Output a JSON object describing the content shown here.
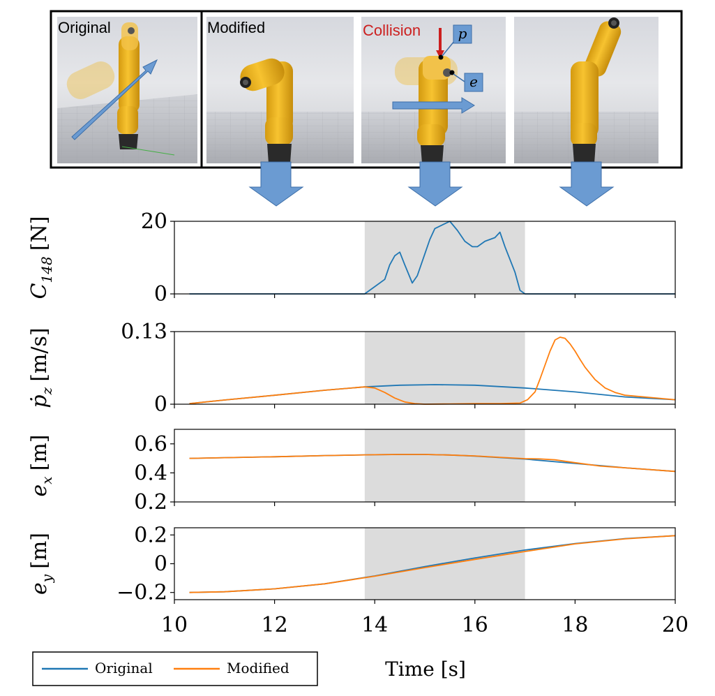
{
  "panels": {
    "original_label": "Original",
    "modified_label": "Modified",
    "collision_label": "Collision",
    "point_p_label": "p",
    "point_e_label": "e"
  },
  "x_axis": {
    "label": "Time [s]",
    "ticks": [
      10,
      12,
      14,
      16,
      18,
      20
    ],
    "range": [
      10,
      20
    ]
  },
  "legend": {
    "entries": [
      "Original",
      "Modified"
    ],
    "placement": "bottom-left"
  },
  "colors": {
    "original": "#1f77b4",
    "modified": "#ff7f0e",
    "shade": "#dcdcdc",
    "arrow": "#6b9bd2",
    "collision": "#cc1f1f",
    "robot": "#f2b51b"
  },
  "chart_data": [
    {
      "type": "line",
      "ylabel_main": "C",
      "ylabel_sub": "148",
      "ylabel_unit": "[N]",
      "ylim": [
        0,
        20
      ],
      "yticks": [
        0,
        20
      ],
      "shaded_x": [
        13.8,
        17.0
      ],
      "series": [
        {
          "name": "Original",
          "x": [
            10.3,
            13.8,
            14.0,
            14.2,
            14.3,
            14.4,
            14.5,
            14.6,
            14.75,
            14.85,
            15.0,
            15.1,
            15.2,
            15.35,
            15.5,
            15.65,
            15.8,
            15.95,
            16.05,
            16.2,
            16.4,
            16.5,
            16.6,
            16.8,
            16.9,
            17.0,
            20.0
          ],
          "y": [
            0,
            0,
            2,
            4,
            8,
            10.5,
            11.5,
            8,
            3,
            5,
            11,
            15,
            18,
            19,
            20,
            17.5,
            14.5,
            13,
            13,
            14.5,
            15.5,
            17,
            13,
            6,
            1,
            0,
            0
          ]
        }
      ]
    },
    {
      "type": "line",
      "ylabel_main": "ṗ",
      "ylabel_sub": "z",
      "ylabel_unit": "[m/s]",
      "ylim": [
        0,
        0.13
      ],
      "yticks": [
        0,
        0.13
      ],
      "shaded_x": [
        13.8,
        17.0
      ],
      "series": [
        {
          "name": "Original",
          "x": [
            10.3,
            11.0,
            12.0,
            13.0,
            13.8,
            14.5,
            15.2,
            16.0,
            17.0,
            18.0,
            19.0,
            20.0
          ],
          "y": [
            0.001,
            0.0075,
            0.016,
            0.025,
            0.031,
            0.034,
            0.035,
            0.034,
            0.029,
            0.022,
            0.013,
            0.008
          ]
        },
        {
          "name": "Modified",
          "x": [
            10.3,
            11.0,
            12.0,
            13.0,
            13.8,
            14.0,
            14.2,
            14.4,
            14.6,
            14.8,
            15.0,
            15.5,
            16.0,
            16.5,
            16.9,
            17.05,
            17.2,
            17.3,
            17.4,
            17.5,
            17.6,
            17.7,
            17.8,
            17.9,
            18.0,
            18.1,
            18.2,
            18.4,
            18.6,
            18.8,
            19.0,
            19.5,
            20.0
          ],
          "y": [
            0.001,
            0.0075,
            0.016,
            0.025,
            0.031,
            0.029,
            0.021,
            0.011,
            0.004,
            0.001,
            0.0,
            0.0005,
            0.001,
            0.001,
            0.002,
            0.008,
            0.022,
            0.045,
            0.07,
            0.095,
            0.115,
            0.12,
            0.118,
            0.108,
            0.095,
            0.08,
            0.066,
            0.044,
            0.029,
            0.021,
            0.016,
            0.012,
            0.008
          ]
        }
      ]
    },
    {
      "type": "line",
      "ylabel_main": "e",
      "ylabel_sub": "x",
      "ylabel_unit": "[m]",
      "ylim": [
        0.2,
        0.7
      ],
      "yticks": [
        0.2,
        0.4,
        0.6
      ],
      "shaded_x": [
        13.8,
        17.0
      ],
      "series": [
        {
          "name": "Original",
          "x": [
            10.3,
            11.0,
            12.0,
            13.0,
            14.0,
            14.5,
            15.0,
            15.5,
            16.0,
            17.0,
            18.0,
            19.0,
            20.0
          ],
          "y": [
            0.5,
            0.505,
            0.511,
            0.519,
            0.525,
            0.527,
            0.527,
            0.523,
            0.516,
            0.495,
            0.465,
            0.435,
            0.41
          ]
        },
        {
          "name": "Modified",
          "x": [
            10.3,
            11.0,
            12.0,
            13.0,
            14.0,
            14.5,
            15.0,
            15.5,
            16.0,
            16.5,
            17.0,
            17.3,
            17.6,
            18.0,
            18.5,
            19.0,
            20.0
          ],
          "y": [
            0.5,
            0.505,
            0.511,
            0.519,
            0.525,
            0.527,
            0.527,
            0.523,
            0.517,
            0.507,
            0.498,
            0.496,
            0.49,
            0.47,
            0.447,
            0.435,
            0.41
          ]
        }
      ]
    },
    {
      "type": "line",
      "ylabel_main": "e",
      "ylabel_sub": "y",
      "ylabel_unit": "[m]",
      "ylim": [
        -0.25,
        0.25
      ],
      "yticks": [
        -0.2,
        0,
        0.2
      ],
      "shaded_x": [
        13.8,
        17.0
      ],
      "series": [
        {
          "name": "Original",
          "x": [
            10.3,
            11.0,
            12.0,
            13.0,
            14.0,
            15.0,
            16.0,
            17.0,
            18.0,
            19.0,
            20.0
          ],
          "y": [
            -0.2,
            -0.195,
            -0.175,
            -0.14,
            -0.085,
            -0.02,
            0.04,
            0.095,
            0.14,
            0.175,
            0.195
          ]
        },
        {
          "name": "Modified",
          "x": [
            10.3,
            11.0,
            12.0,
            13.0,
            14.0,
            15.0,
            16.0,
            17.0,
            18.0,
            19.0,
            20.0
          ],
          "y": [
            -0.2,
            -0.195,
            -0.175,
            -0.14,
            -0.087,
            -0.027,
            0.03,
            0.085,
            0.138,
            0.173,
            0.195
          ]
        }
      ]
    }
  ]
}
